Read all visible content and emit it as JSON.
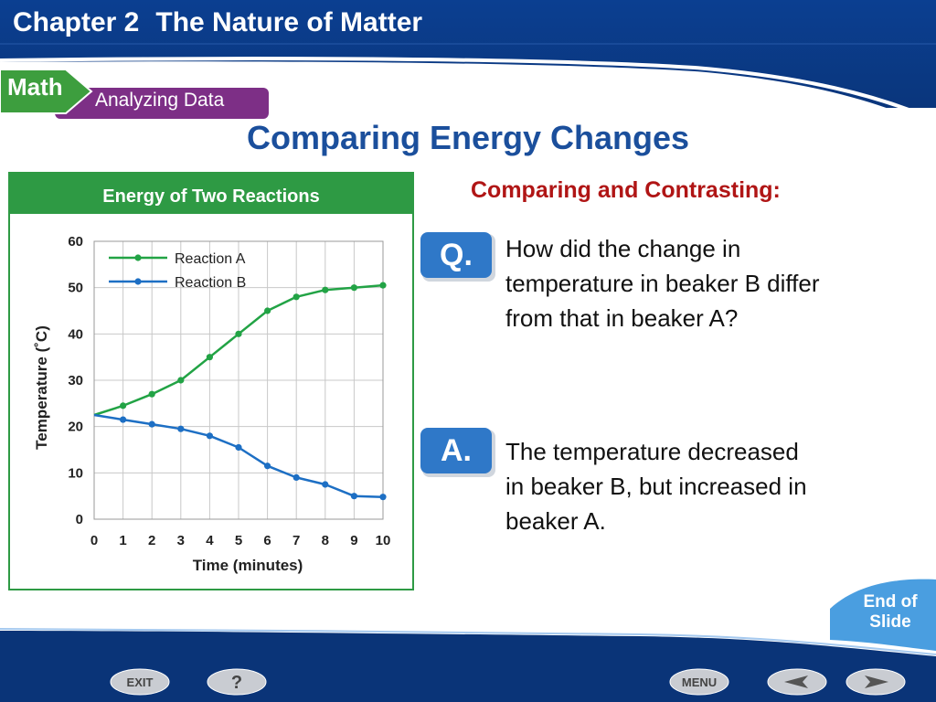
{
  "header": {
    "chapter": "Chapter 2",
    "chapter_title": "The Nature of Matter"
  },
  "feature": {
    "category": "Math",
    "subtitle": "Analyzing Data"
  },
  "slide": {
    "title": "Comparing Energy Changes",
    "section_label": "Comparing and Contrasting:",
    "question_badge": "Q.",
    "question": [
      "How did the change in",
      "temperature in beaker B differ",
      "from that in beaker A?"
    ],
    "answer_badge": "A.",
    "answer": [
      "The temperature decreased",
      "in beaker B, but increased in",
      "beaker A."
    ]
  },
  "nav": {
    "end_of_slide": [
      "End of",
      "Slide"
    ],
    "exit_label": "EXIT",
    "help_label": "?",
    "menu_label": "MENU"
  },
  "colors": {
    "header_blue": "#0a3d8c",
    "title_blue": "#1b4f9c",
    "section_red": "#b01515",
    "chart_green": "#2e9a44",
    "reaction_a": "#22a345",
    "reaction_b": "#1d6fc4"
  },
  "chart_data": {
    "type": "line",
    "title": "Energy of Two Reactions",
    "xlabel": "Time (minutes)",
    "ylabel": "Temperature (˚C)",
    "x": [
      0,
      1,
      2,
      3,
      4,
      5,
      6,
      7,
      8,
      9,
      10
    ],
    "xlim": [
      0,
      10
    ],
    "ylim": [
      0,
      60
    ],
    "xticks": [
      "0",
      "1",
      "2",
      "3",
      "4",
      "5",
      "6",
      "7",
      "8",
      "9",
      "10"
    ],
    "yticks": [
      "0",
      "10",
      "20",
      "30",
      "40",
      "50",
      "60"
    ],
    "grid": true,
    "legend": "top-left",
    "series": [
      {
        "name": "Reaction A",
        "color": "#22a345",
        "values": [
          22.5,
          24.5,
          27,
          30,
          35,
          40,
          45,
          48,
          49.5,
          50,
          50.5
        ]
      },
      {
        "name": "Reaction B",
        "color": "#1d6fc4",
        "values": [
          22.5,
          21.5,
          20.5,
          19.5,
          18,
          15.5,
          11.5,
          9,
          7.5,
          5,
          4.8
        ]
      }
    ]
  }
}
